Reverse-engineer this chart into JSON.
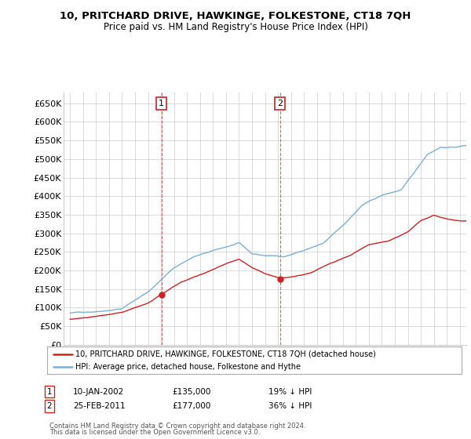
{
  "title": "10, PRITCHARD DRIVE, HAWKINGE, FOLKESTONE, CT18 7QH",
  "subtitle": "Price paid vs. HM Land Registry's House Price Index (HPI)",
  "ylabel_ticks": [
    "£0",
    "£50K",
    "£100K",
    "£150K",
    "£200K",
    "£250K",
    "£300K",
    "£350K",
    "£400K",
    "£450K",
    "£500K",
    "£550K",
    "£600K",
    "£650K"
  ],
  "ytick_values": [
    0,
    50000,
    100000,
    150000,
    200000,
    250000,
    300000,
    350000,
    400000,
    450000,
    500000,
    550000,
    600000,
    650000
  ],
  "legend_property": "10, PRITCHARD DRIVE, HAWKINGE, FOLKESTONE, CT18 7QH (detached house)",
  "legend_hpi": "HPI: Average price, detached house, Folkestone and Hythe",
  "annotation1_date": "10-JAN-2002",
  "annotation1_price": "£135,000",
  "annotation1_hpi": "19% ↓ HPI",
  "annotation2_date": "25-FEB-2011",
  "annotation2_price": "£177,000",
  "annotation2_hpi": "36% ↓ HPI",
  "footnote1": "Contains HM Land Registry data © Crown copyright and database right 2024.",
  "footnote2": "This data is licensed under the Open Government Licence v3.0.",
  "hpi_color": "#7BAFD4",
  "property_color": "#CC2222",
  "annotation_color": "#CC2222",
  "background_color": "#FFFFFF",
  "grid_color": "#CCCCCC",
  "sale1_x": 2002.04,
  "sale1_y": 135000,
  "sale2_x": 2011.15,
  "sale2_y": 177000,
  "vline1_x": 2002.04,
  "vline2_x": 2011.15,
  "xlim": [
    1994.5,
    2025.5
  ],
  "ylim": [
    0,
    680000
  ]
}
